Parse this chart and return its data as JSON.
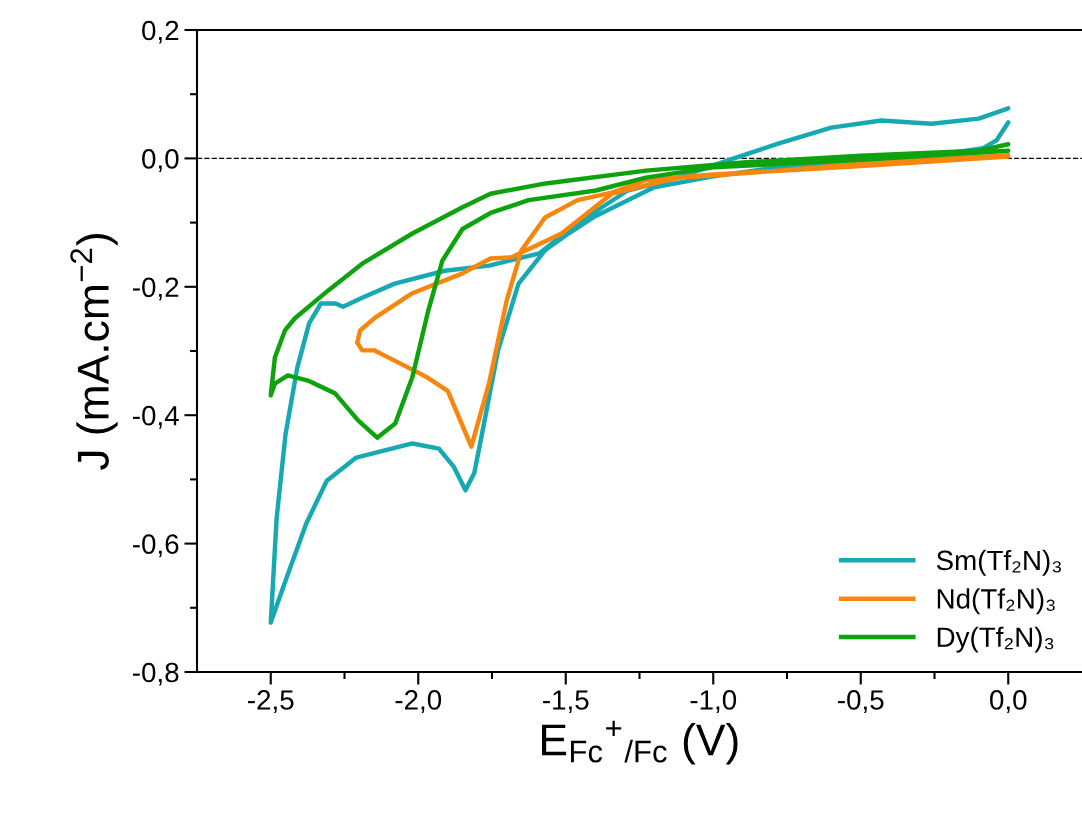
{
  "chart_data": {
    "type": "line",
    "xlabel": "E$_{Fc}$$^{+}$$_{/Fc}$ (V)",
    "ylabel": "J (mA.cm$^{−2}$)",
    "xlim": [
      -2.75,
      0.25
    ],
    "xticks": [
      {
        "value": -2.5,
        "label": "-2,5"
      },
      {
        "value": -2.25,
        "label": null
      },
      {
        "value": -2.0,
        "label": "-2,0"
      },
      {
        "value": -1.75,
        "label": null
      },
      {
        "value": -1.5,
        "label": "-1,5"
      },
      {
        "value": -1.25,
        "label": null
      },
      {
        "value": -1.0,
        "label": "-1,0"
      },
      {
        "value": -0.75,
        "label": null
      },
      {
        "value": -0.5,
        "label": "-0,5"
      },
      {
        "value": -0.25,
        "label": null
      },
      {
        "value": 0.0,
        "label": "0,0"
      }
    ],
    "ylim": [
      -0.8,
      0.2
    ],
    "yticks": [
      {
        "value": -0.8,
        "label": "-0,8"
      },
      {
        "value": -0.7,
        "label": null
      },
      {
        "value": -0.6,
        "label": "-0,6"
      },
      {
        "value": -0.5,
        "label": null
      },
      {
        "value": -0.4,
        "label": "-0,4"
      },
      {
        "value": -0.3,
        "label": null
      },
      {
        "value": -0.2,
        "label": "-0,2"
      },
      {
        "value": -0.1,
        "label": null
      },
      {
        "value": 0.0,
        "label": "0,0"
      },
      {
        "value": 0.1,
        "label": null
      },
      {
        "value": 0.2,
        "label": "0,2"
      }
    ],
    "grid": false,
    "legend": "bottom right",
    "line_style": "solid",
    "marker": "none",
    "ref_lines": [
      {
        "axis": "y",
        "value": 0.0,
        "color": "#000000",
        "line_style": "dashed"
      }
    ],
    "series": [
      {
        "name": "Sm(Tf₂N)₃",
        "color": "#17a9b2",
        "x": [
          0.0,
          -0.04,
          -0.085,
          -0.2,
          -0.5,
          -0.8,
          -1.0,
          -1.2,
          -1.4,
          -1.5,
          -1.57,
          -1.66,
          -1.73,
          -1.78,
          -1.81,
          -1.84,
          -1.88,
          -1.93,
          -2.02,
          -2.21,
          -2.31,
          -2.38,
          -2.45,
          -2.5,
          -2.48,
          -2.45,
          -2.41,
          -2.37,
          -2.33,
          -2.28,
          -2.255,
          -2.19,
          -2.08,
          -1.91,
          -1.76,
          -1.59,
          -1.46,
          -1.29,
          -1.12,
          -0.95,
          -0.78,
          -0.6,
          -0.43,
          -0.26,
          -0.1,
          0.0
        ],
        "values": [
          0.056,
          0.028,
          0.016,
          0.008,
          -0.005,
          -0.015,
          -0.028,
          -0.045,
          -0.09,
          -0.12,
          -0.143,
          -0.195,
          -0.3,
          -0.42,
          -0.49,
          -0.517,
          -0.48,
          -0.452,
          -0.444,
          -0.466,
          -0.502,
          -0.569,
          -0.658,
          -0.723,
          -0.56,
          -0.43,
          -0.326,
          -0.257,
          -0.226,
          -0.226,
          -0.231,
          -0.217,
          -0.195,
          -0.175,
          -0.167,
          -0.148,
          -0.101,
          -0.05,
          -0.03,
          -0.003,
          0.023,
          0.048,
          0.059,
          0.054,
          0.062,
          0.078
        ]
      },
      {
        "name": "Nd(Tf₂N)₃",
        "color": "#f7860f",
        "x": [
          0.0,
          -0.5,
          -1.0,
          -1.23,
          -1.34,
          -1.46,
          -1.57,
          -1.65,
          -1.7,
          -1.76,
          -1.82,
          -1.9,
          -1.97,
          -2.08,
          -2.15,
          -2.19,
          -2.207,
          -2.197,
          -2.146,
          -2.02,
          -1.85,
          -1.755,
          -1.684,
          -1.514,
          -1.344,
          -1.116,
          -0.776,
          -0.5,
          0.0
        ],
        "values": [
          0.003,
          -0.012,
          -0.025,
          -0.034,
          -0.053,
          -0.065,
          -0.092,
          -0.143,
          -0.221,
          -0.35,
          -0.449,
          -0.362,
          -0.341,
          -0.315,
          -0.299,
          -0.299,
          -0.287,
          -0.268,
          -0.248,
          -0.21,
          -0.179,
          -0.156,
          -0.154,
          -0.117,
          -0.055,
          -0.03,
          -0.019,
          -0.008,
          0.005
        ]
      },
      {
        "name": "Dy(Tf₂N)₃",
        "color": "#0ea30e",
        "x": [
          0.0,
          -0.5,
          -1.0,
          -1.228,
          -1.398,
          -1.626,
          -1.755,
          -1.85,
          -1.918,
          -1.966,
          -2.02,
          -2.078,
          -2.139,
          -2.204,
          -2.282,
          -2.374,
          -2.442,
          -2.486,
          -2.5,
          -2.486,
          -2.452,
          -2.418,
          -2.306,
          -2.19,
          -2.02,
          -1.85,
          -1.755,
          -1.568,
          -1.228,
          -0.888,
          -0.5,
          -0.1,
          0.0
        ],
        "values": [
          0.012,
          -0.002,
          -0.014,
          -0.03,
          -0.05,
          -0.065,
          -0.085,
          -0.11,
          -0.159,
          -0.237,
          -0.341,
          -0.413,
          -0.435,
          -0.408,
          -0.366,
          -0.346,
          -0.338,
          -0.351,
          -0.369,
          -0.31,
          -0.268,
          -0.249,
          -0.206,
          -0.164,
          -0.117,
          -0.076,
          -0.055,
          -0.039,
          -0.019,
          -0.006,
          0.004,
          0.012,
          0.022
        ]
      }
    ]
  }
}
